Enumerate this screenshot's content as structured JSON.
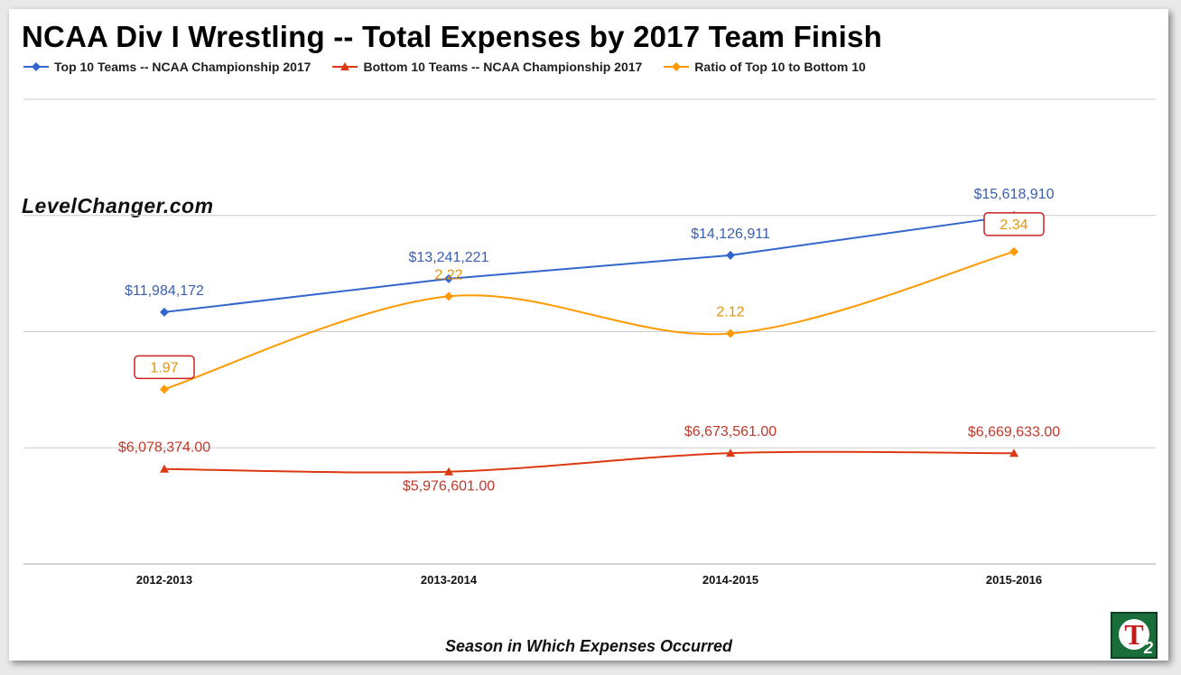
{
  "chart_data": {
    "type": "line",
    "title": "NCAA Div I Wrestling -- Total Expenses by 2017 Team Finish",
    "xlabel": "Season in Which Expenses Occurred",
    "ylabel": "",
    "categories": [
      "2012-2013",
      "2013-2014",
      "2014-2015",
      "2015-2016"
    ],
    "series": [
      {
        "name": "Top 10 Teams -- NCAA Championship 2017",
        "values": [
          11984172,
          13241221,
          14126911,
          15618910
        ],
        "labels": [
          "$11,984,172",
          "$13,241,221",
          "$14,126,911",
          "$15,618,910"
        ],
        "color": "#3366cc",
        "marker": "diamond",
        "axis": "left"
      },
      {
        "name": "Bottom 10 Teams -- NCAA Championship 2017",
        "values": [
          6078374,
          5976601,
          6673561,
          6669633
        ],
        "labels": [
          "$6,078,374.00",
          "$5,976,601.00",
          "$6,673,561.00",
          "$6,669,633.00"
        ],
        "color": "#dc3912",
        "marker": "triangle",
        "axis": "left"
      },
      {
        "name": "Ratio of Top 10 to Bottom 10",
        "values": [
          1.97,
          2.22,
          2.12,
          2.34
        ],
        "labels": [
          "1.97",
          "2.22",
          "2.12",
          "2.34"
        ],
        "color": "#ff9900",
        "marker": "diamond",
        "axis": "right",
        "highlighted": [
          "1.97",
          "2.34"
        ]
      }
    ],
    "ylim_left": [
      2500000,
      20000000
    ],
    "ylim_right": [
      1.5,
      2.75
    ],
    "grid": true,
    "legend_position": "top-left"
  },
  "watermark": "LevelChanger.com",
  "logo": {
    "letter": "T",
    "subscript": "2"
  },
  "colors": {
    "highlight_box": "#cc2222",
    "grid": "#cccccc"
  }
}
